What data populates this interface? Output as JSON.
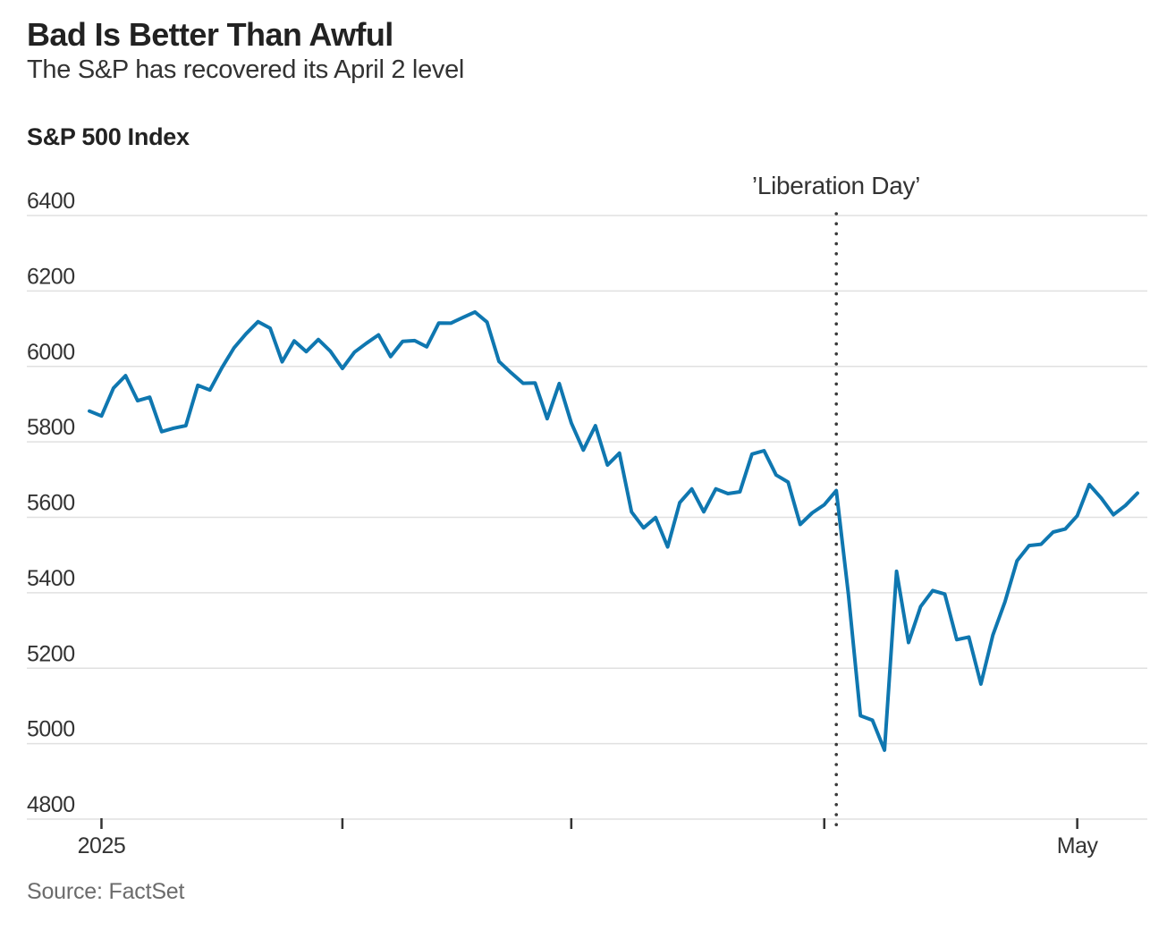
{
  "header": {
    "title": "Bad Is Better Than Awful",
    "subtitle": "The S&P has recovered its April 2 level"
  },
  "chart_label": "S&P 500 Index",
  "annotation": "’Liberation Day’",
  "source": "Source: FactSet",
  "x_axis": {
    "year_label": "2025",
    "month_label": "May"
  },
  "colors": {
    "line": "#0f77b0",
    "grid": "#e0e0e0",
    "axis_text": "#333333",
    "tick": "#333333",
    "event_dots": "#3a3a3a"
  },
  "chart_data": {
    "type": "line",
    "title": "S&P 500 Index",
    "series_name": "S&P 500 close",
    "ylim": [
      4800,
      6400
    ],
    "yticks": [
      4800,
      5000,
      5200,
      5400,
      5600,
      5800,
      6000,
      6200,
      6400
    ],
    "grid": true,
    "legend": false,
    "xticks": [
      {
        "i": 1,
        "label": "2025"
      },
      {
        "i": 21,
        "label": ""
      },
      {
        "i": 40,
        "label": ""
      },
      {
        "i": 61,
        "label": ""
      },
      {
        "i": 82,
        "label": "May"
      }
    ],
    "event_line": {
      "i": 62,
      "date": "2025-04-02",
      "label": "’Liberation Day’"
    },
    "x": [
      "2024-12-31",
      "2025-01-02",
      "2025-01-03",
      "2025-01-06",
      "2025-01-07",
      "2025-01-08",
      "2025-01-10",
      "2025-01-13",
      "2025-01-14",
      "2025-01-15",
      "2025-01-16",
      "2025-01-17",
      "2025-01-21",
      "2025-01-22",
      "2025-01-23",
      "2025-01-24",
      "2025-01-27",
      "2025-01-28",
      "2025-01-29",
      "2025-01-30",
      "2025-01-31",
      "2025-02-03",
      "2025-02-04",
      "2025-02-05",
      "2025-02-06",
      "2025-02-07",
      "2025-02-10",
      "2025-02-11",
      "2025-02-12",
      "2025-02-13",
      "2025-02-14",
      "2025-02-18",
      "2025-02-19",
      "2025-02-20",
      "2025-02-21",
      "2025-02-24",
      "2025-02-25",
      "2025-02-26",
      "2025-02-27",
      "2025-02-28",
      "2025-03-03",
      "2025-03-04",
      "2025-03-05",
      "2025-03-06",
      "2025-03-07",
      "2025-03-10",
      "2025-03-11",
      "2025-03-12",
      "2025-03-13",
      "2025-03-14",
      "2025-03-17",
      "2025-03-18",
      "2025-03-19",
      "2025-03-20",
      "2025-03-21",
      "2025-03-24",
      "2025-03-25",
      "2025-03-26",
      "2025-03-27",
      "2025-03-28",
      "2025-03-31",
      "2025-04-01",
      "2025-04-02",
      "2025-04-03",
      "2025-04-04",
      "2025-04-07",
      "2025-04-08",
      "2025-04-09",
      "2025-04-10",
      "2025-04-11",
      "2025-04-14",
      "2025-04-15",
      "2025-04-16",
      "2025-04-17",
      "2025-04-21",
      "2025-04-22",
      "2025-04-23",
      "2025-04-24",
      "2025-04-25",
      "2025-04-28",
      "2025-04-29",
      "2025-04-30",
      "2025-05-01",
      "2025-05-02",
      "2025-05-05",
      "2025-05-06",
      "2025-05-07",
      "2025-05-08"
    ],
    "values": [
      5881.63,
      5868.55,
      5942.47,
      5975.38,
      5909.03,
      5918.25,
      5827.04,
      5836.22,
      5842.91,
      5949.91,
      5937.34,
      5996.66,
      6049.24,
      6086.37,
      6118.71,
      6101.24,
      6012.28,
      6067.7,
      6039.31,
      6071.17,
      6040.53,
      5994.57,
      6037.88,
      6061.48,
      6083.57,
      6025.99,
      6066.44,
      6068.5,
      6051.97,
      6115.07,
      6114.63,
      6129.58,
      6144.15,
      6117.52,
      6013.13,
      5983.25,
      5955.25,
      5956.06,
      5861.57,
      5954.5,
      5849.72,
      5778.15,
      5842.63,
      5738.52,
      5770.2,
      5614.56,
      5572.07,
      5599.3,
      5521.52,
      5638.94,
      5675.12,
      5614.66,
      5675.29,
      5662.89,
      5667.56,
      5767.57,
      5776.65,
      5712.2,
      5693.31,
      5580.94,
      5611.85,
      5633.07,
      5670.97,
      5396.52,
      5074.08,
      5062.25,
      4982.77,
      5456.9,
      5268.05,
      5363.36,
      5405.97,
      5396.63,
      5275.7,
      5282.7,
      5158.2,
      5287.76,
      5375.86,
      5484.77,
      5525.21,
      5528.75,
      5560.83,
      5569.06,
      5604.14,
      5686.67,
      5650.38,
      5606.91,
      5631.28,
      5663.94
    ]
  }
}
